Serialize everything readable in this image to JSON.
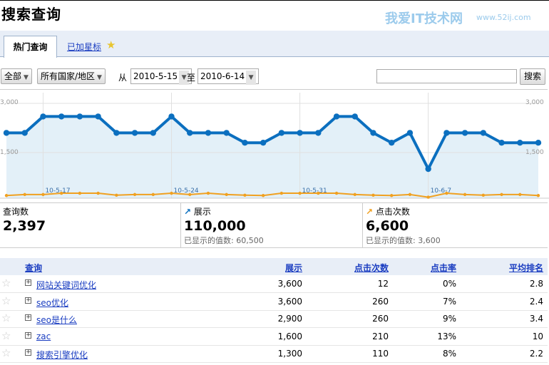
{
  "title": "搜索查询",
  "tabs": [
    {
      "label": "热门查询",
      "active": true
    },
    {
      "label": "已加星标",
      "icon": "star-icon"
    }
  ],
  "filters": {
    "type": "全部",
    "region": "所有国家/地区",
    "from_label": "从",
    "from_date": "2010-5-15",
    "to_label": "至",
    "to_date": "2010-6-14"
  },
  "search": {
    "value": "",
    "button": "搜索"
  },
  "colors": {
    "impressions": "#0b6fbf",
    "clicks": "#f0a020",
    "fill": "#e3f0f8",
    "header": "#e8eef7",
    "link": "#1a3dc1"
  },
  "chart_data": {
    "type": "line",
    "y_ticks": [
      "3,000",
      "1,500"
    ],
    "ylim": [
      0,
      3000
    ],
    "x_labels": [
      {
        "index": 2,
        "label": "10-5-17"
      },
      {
        "index": 9,
        "label": "10-5-24"
      },
      {
        "index": 16,
        "label": "10-5-31"
      },
      {
        "index": 23,
        "label": "10-6-7"
      }
    ],
    "series": [
      {
        "name": "展示",
        "values": [
          2100,
          2100,
          2600,
          2600,
          2600,
          2600,
          2100,
          2100,
          2100,
          2600,
          2100,
          2100,
          2100,
          1800,
          1800,
          2100,
          2100,
          2100,
          2600,
          2600,
          2100,
          1800,
          2100,
          1000,
          2100,
          2100,
          2100,
          1800,
          1800,
          1800
        ]
      },
      {
        "name": "点击次数",
        "values": [
          190,
          220,
          220,
          260,
          260,
          260,
          200,
          220,
          220,
          260,
          220,
          260,
          220,
          200,
          190,
          260,
          260,
          260,
          260,
          220,
          200,
          190,
          220,
          140,
          260,
          220,
          200,
          220,
          220,
          190
        ]
      }
    ]
  },
  "summary": [
    {
      "label": "查询数",
      "value": "2,397"
    },
    {
      "label": "展示",
      "value": "110,000",
      "sub": "已显示的值数: 60,500",
      "icon": "impressions-trend-icon"
    },
    {
      "label": "点击次数",
      "value": "6,600",
      "sub": "已显示的值数: 3,600",
      "icon": "clicks-trend-icon"
    }
  ],
  "table": {
    "headers": [
      "查询",
      "展示",
      "点击次数",
      "点击率",
      "平均排名"
    ],
    "rows": [
      [
        "网站关键词优化",
        "3,600",
        "12",
        "0%",
        "2.8"
      ],
      [
        "seo优化",
        "3,600",
        "260",
        "7%",
        "2.4"
      ],
      [
        "seo是什么",
        "2,900",
        "260",
        "9%",
        "3.4"
      ],
      [
        "zac",
        "1,600",
        "210",
        "13%",
        "10"
      ],
      [
        "搜索引擎优化",
        "1,300",
        "110",
        "8%",
        "2.2"
      ]
    ]
  },
  "watermark": {
    "text": "我爱IT技术网",
    "url": "www.52ij.com"
  }
}
